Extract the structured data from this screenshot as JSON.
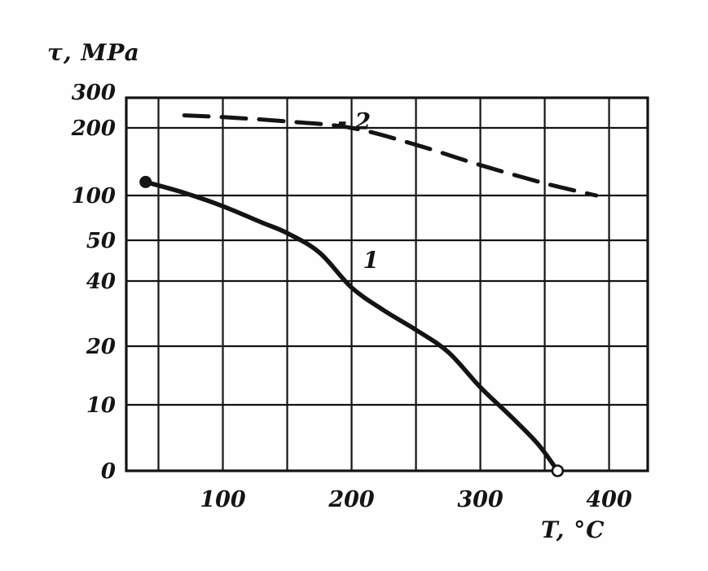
{
  "chart_data": {
    "type": "line",
    "title": "",
    "ylabel": "τ, MPa",
    "xlabel": "T, °C",
    "xlim": [
      25,
      430
    ],
    "x_ticks": [
      100,
      200,
      300,
      400
    ],
    "y_ticks": [
      300,
      200,
      100,
      50,
      40,
      20,
      10,
      0
    ],
    "grid": true,
    "axis_note": "y axis approximately logarithmic, hand drawn",
    "series": [
      {
        "name": "1",
        "style": "solid",
        "marker_start": "filled-circle",
        "marker_end": "open-circle",
        "points": [
          [
            40,
            120
          ],
          [
            70,
            104
          ],
          [
            100,
            88
          ],
          [
            130,
            70
          ],
          [
            150,
            58
          ],
          [
            175,
            47
          ],
          [
            200,
            38
          ],
          [
            225,
            31
          ],
          [
            250,
            25
          ],
          [
            275,
            19
          ],
          [
            300,
            13
          ],
          [
            325,
            8
          ],
          [
            345,
            4
          ],
          [
            360,
            0
          ]
        ]
      },
      {
        "name": "2",
        "style": "dashed",
        "points": [
          [
            70,
            235
          ],
          [
            100,
            230
          ],
          [
            150,
            218
          ],
          [
            200,
            200
          ],
          [
            250,
            175
          ],
          [
            300,
            145
          ],
          [
            350,
            118
          ],
          [
            390,
            100
          ]
        ]
      }
    ],
    "annotations": [
      {
        "text": "1",
        "x": 215,
        "y": 45
      },
      {
        "text": "- 2",
        "x": 202,
        "y": 217
      }
    ],
    "colors": {
      "line": "#141414",
      "background": "#fefefe"
    }
  }
}
